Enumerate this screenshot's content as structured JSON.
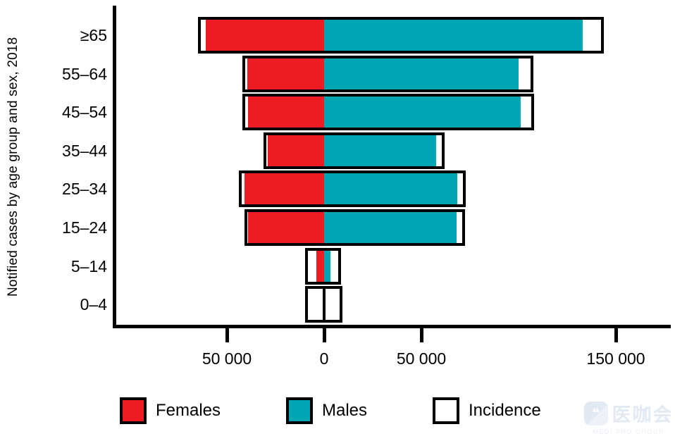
{
  "chart_data": {
    "type": "bar",
    "variant": "diverging-horizontal-pyramid",
    "title": "",
    "ylabel": "Notified cases by age group and sex, 2018",
    "xlabel": "",
    "categories": [
      "≥65",
      "55–64",
      "45–54",
      "35–44",
      "25–34",
      "15–24",
      "5–14",
      "0–4"
    ],
    "series": [
      {
        "name": "Females",
        "color": "#ED1C24",
        "direction": "left",
        "values": [
          61000,
          39500,
          39000,
          29000,
          41000,
          39000,
          4000,
          0
        ]
      },
      {
        "name": "Males",
        "color": "#00A5B4",
        "direction": "right",
        "values": [
          133000,
          100000,
          101000,
          57500,
          68500,
          68000,
          3300,
          0
        ]
      },
      {
        "name": "Incidence",
        "color": "#FFFFFF",
        "type": "range-outline",
        "left_values": [
          65000,
          42000,
          42000,
          31000,
          44000,
          41000,
          9800,
          9800
        ],
        "right_values": [
          144000,
          107500,
          108000,
          62000,
          73000,
          72500,
          8700,
          9500
        ]
      }
    ],
    "x_ticks": [
      {
        "value": -50000,
        "label": "50 000"
      },
      {
        "value": 0,
        "label": "0"
      },
      {
        "value": 50000,
        "label": "50 000"
      },
      {
        "value": 150000,
        "label": "150 000"
      }
    ],
    "xlim": [
      -107500,
      177500
    ],
    "grid": false,
    "legend_position": "bottom"
  },
  "legend": {
    "items": [
      {
        "label": "Females",
        "color": "#ED1C24"
      },
      {
        "label": "Males",
        "color": "#00A5B4"
      },
      {
        "label": "Incidence",
        "color": "#FFFFFF"
      }
    ]
  },
  "watermark": {
    "cjk_text": "医咖会",
    "sub_text": "MEDI PRO GROUP",
    "color": "#e3eaf3"
  }
}
